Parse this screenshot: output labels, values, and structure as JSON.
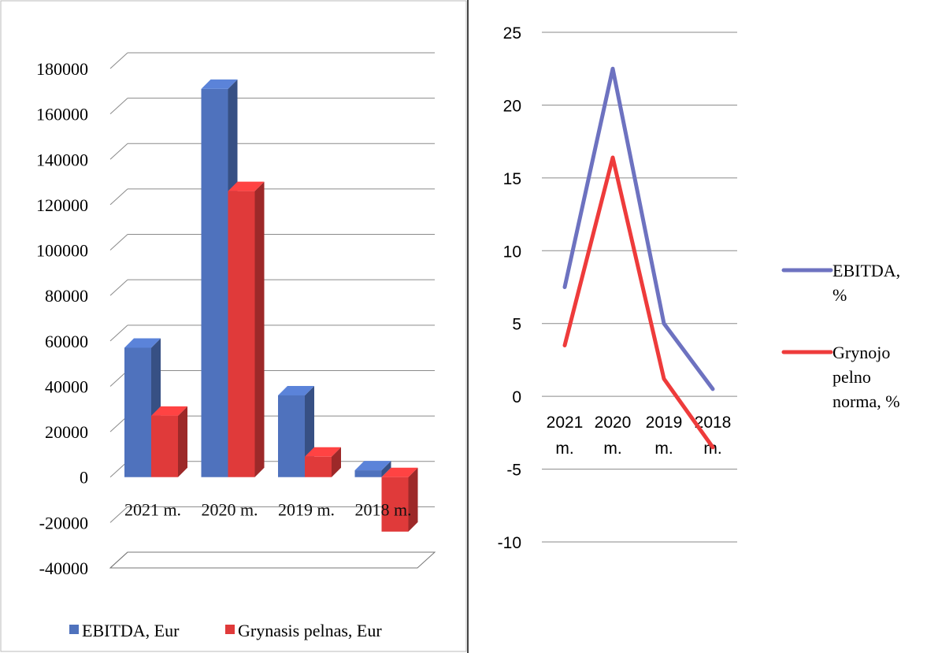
{
  "chart_data": [
    {
      "type": "bar",
      "categories": [
        "2021 m.",
        "2020 m.",
        "2019 m.",
        "2018 m."
      ],
      "ylim": [
        -40000,
        180000
      ],
      "yticks": [
        -40000,
        -20000,
        0,
        20000,
        40000,
        60000,
        80000,
        100000,
        120000,
        140000,
        160000,
        180000
      ],
      "series": [
        {
          "name": "EBITDA, Eur",
          "color": "#4f72bd",
          "values": [
            57000,
            171000,
            36000,
            3000
          ]
        },
        {
          "name": "Grynasis pelnas, Eur",
          "color": "#e03a3a",
          "values": [
            27000,
            126000,
            9000,
            -24000
          ]
        }
      ],
      "grid": true,
      "legend": "bottom",
      "projection": "3d"
    },
    {
      "type": "line",
      "categories": [
        "2021 m.",
        "2020 m.",
        "2019 m.",
        "2018 m."
      ],
      "ylim": [
        -10,
        25
      ],
      "yticks": [
        -10,
        -5,
        0,
        5,
        10,
        15,
        20,
        25
      ],
      "series": [
        {
          "name": "EBITDA, %",
          "color": "#6d72c0",
          "values": [
            7.5,
            22.5,
            5.0,
            0.5
          ]
        },
        {
          "name": "Grynojo pelno norma, %",
          "color": "#ee3b3b",
          "values": [
            3.5,
            16.4,
            1.2,
            -3.5
          ]
        }
      ],
      "grid": true,
      "legend": "right"
    }
  ]
}
